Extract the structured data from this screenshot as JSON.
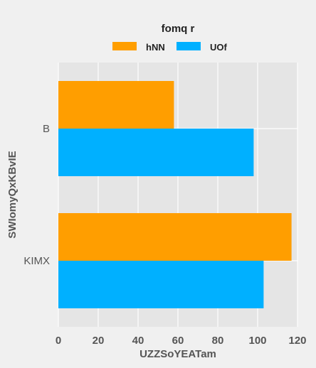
{
  "chart_data": {
    "type": "bar",
    "orientation": "horizontal",
    "legend_title": "fomq r",
    "legend_placement": "top-center",
    "xlabel": "UZZSoYEATam",
    "ylabel": "SWIomyQxKBvIE",
    "xlim": [
      0,
      120
    ],
    "xticks": [
      "0",
      "20",
      "40",
      "60",
      "80",
      "100",
      "120"
    ],
    "grid": true,
    "categories": [
      "B",
      "KIMX"
    ],
    "series": [
      {
        "name": "hNN",
        "color": "#ff9e00",
        "values": [
          58,
          117
        ]
      },
      {
        "name": "UOf",
        "color": "#00b0ff",
        "values": [
          98,
          103
        ]
      }
    ]
  }
}
